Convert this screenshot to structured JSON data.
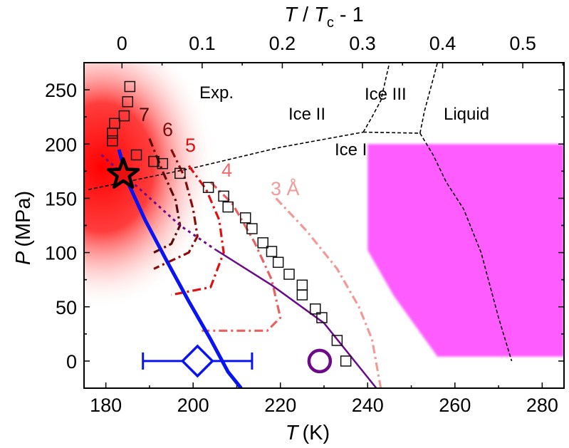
{
  "chart_data": {
    "type": "scatter",
    "xlabel": "T (K)",
    "xlabel_italic": "T",
    "xlabel_unit": "(K)",
    "ylabel_italic": "P",
    "ylabel_unit": "(MPa)",
    "top_xlabel": {
      "T": "T",
      "slash": " / ",
      "Tc": "T",
      "sub": "c",
      "rest": " - 1"
    },
    "xlim": [
      175,
      285
    ],
    "ylim": [
      -25,
      275
    ],
    "x_ticks": [
      180,
      200,
      220,
      240,
      260,
      280
    ],
    "x_tick_labels": [
      "180",
      "200",
      "220",
      "240",
      "260",
      "280"
    ],
    "y_ticks": [
      0,
      50,
      100,
      150,
      200,
      250
    ],
    "y_tick_labels": [
      "0",
      "50",
      "100",
      "150",
      "200",
      "250"
    ],
    "top_ticks": [
      0,
      0.1,
      0.2,
      0.3,
      0.4,
      0.5
    ],
    "top_tick_labels": [
      "0",
      "0.1",
      "0.2",
      "0.3",
      "0.4",
      "0.5"
    ],
    "Tc": 183.7,
    "annotations": {
      "exp": "Exp.",
      "ice_ii": "Ice II",
      "ice_iii": "Ice III",
      "ice_i": "Ice I",
      "liquid": "Liquid"
    },
    "critical_point": {
      "T": 184,
      "P": 172,
      "color": "#e8100f"
    },
    "red_glow": {
      "T": 184,
      "P": 172,
      "color": "#ff0000"
    },
    "exp_squares": [
      {
        "T": 185.5,
        "P": 253
      },
      {
        "T": 185,
        "P": 239
      },
      {
        "T": 184.2,
        "P": 226
      },
      {
        "T": 182,
        "P": 219
      },
      {
        "T": 181.5,
        "P": 210
      },
      {
        "T": 181.5,
        "P": 203
      },
      {
        "T": 187,
        "P": 190
      },
      {
        "T": 191,
        "P": 184
      },
      {
        "T": 193,
        "P": 182
      },
      {
        "T": 197,
        "P": 173
      },
      {
        "T": 203.5,
        "P": 160
      },
      {
        "T": 207,
        "P": 152
      },
      {
        "T": 208,
        "P": 142
      },
      {
        "T": 212,
        "P": 132
      },
      {
        "T": 213.5,
        "P": 122
      },
      {
        "T": 216,
        "P": 109
      },
      {
        "T": 218,
        "P": 101
      },
      {
        "T": 219.5,
        "P": 91
      },
      {
        "T": 222,
        "P": 80
      },
      {
        "T": 225,
        "P": 70
      },
      {
        "T": 225,
        "P": 61
      },
      {
        "T": 228,
        "P": 48
      },
      {
        "T": 229.5,
        "P": 40
      },
      {
        "T": 233,
        "P": 19
      },
      {
        "T": 235,
        "P": 0
      }
    ],
    "blue_line": {
      "color": "#0a14f0",
      "points": [
        [
          183,
          195
        ],
        [
          185,
          165
        ],
        [
          189,
          130
        ],
        [
          194,
          92
        ],
        [
          199,
          55
        ],
        [
          204,
          20
        ],
        [
          208,
          -10
        ],
        [
          211,
          -25
        ]
      ]
    },
    "purple_line": {
      "color": "#6c0a8a",
      "dotted": [
        [
          179,
          190
        ],
        [
          186,
          165
        ],
        [
          197,
          125
        ],
        [
          205,
          103
        ]
      ],
      "solid": [
        [
          205,
          103
        ],
        [
          218,
          70
        ],
        [
          230,
          35
        ],
        [
          242,
          -25
        ]
      ]
    },
    "blue_diamond": {
      "T": 201,
      "P": 0,
      "xerr_low": 188.5,
      "xerr_high": 213.5,
      "color": "#0a14f0"
    },
    "purple_circle": {
      "T": 229,
      "P": 0,
      "color": "#6c0a8a"
    },
    "contours": [
      {
        "label": "7",
        "color": "#5a0a0a",
        "points": [
          [
            190,
            205
          ],
          [
            193,
            175
          ],
          [
            196,
            148
          ],
          [
            197,
            125
          ],
          [
            195,
            108
          ],
          [
            191,
            100
          ]
        ]
      },
      {
        "label": "6",
        "color": "#8a0c0c",
        "points": [
          [
            195,
            195
          ],
          [
            198,
            170
          ],
          [
            200,
            140
          ],
          [
            201,
            115
          ],
          [
            199,
            100
          ],
          [
            191,
            85
          ]
        ]
      },
      {
        "label": "5",
        "color": "#e01010",
        "points": [
          [
            199,
            180
          ],
          [
            203,
            158
          ],
          [
            206,
            130
          ],
          [
            207,
            100
          ],
          [
            204,
            68
          ],
          [
            195,
            61
          ]
        ]
      },
      {
        "label": "4",
        "color": "#e86060",
        "points": [
          [
            204,
            165
          ],
          [
            209,
            145
          ],
          [
            214,
            110
          ],
          [
            218,
            75
          ],
          [
            220,
            40
          ],
          [
            217,
            28
          ],
          [
            202,
            28
          ]
        ]
      },
      {
        "label": "3 Å",
        "color": "#f09a9a",
        "points": [
          [
            219,
            150
          ],
          [
            226,
            120
          ],
          [
            233,
            85
          ],
          [
            238,
            50
          ],
          [
            241,
            20
          ],
          [
            243,
            -25
          ]
        ]
      }
    ],
    "phase_boundaries": {
      "color": "#000000",
      "ice1_ice2": [
        [
          176,
          158
        ],
        [
          200,
          178
        ],
        [
          220,
          197
        ],
        [
          239,
          211
        ]
      ],
      "ice2_ice3": [
        [
          239,
          211
        ],
        [
          241,
          225
        ],
        [
          243,
          240
        ],
        [
          245,
          275
        ]
      ],
      "ice3_ice1": [
        [
          239,
          211
        ],
        [
          252,
          210
        ]
      ],
      "ice3_liquid": [
        [
          252,
          210
        ],
        [
          253,
          230
        ],
        [
          256,
          275
        ]
      ],
      "ice1_liquid": [
        [
          252,
          210
        ],
        [
          255,
          190
        ],
        [
          258,
          165
        ],
        [
          262,
          140
        ],
        [
          266,
          100
        ],
        [
          268,
          70
        ],
        [
          270,
          40
        ],
        [
          273,
          0
        ]
      ]
    },
    "magenta_region": {
      "color": "#ff5cff",
      "points": [
        [
          240,
          200
        ],
        [
          285,
          200
        ],
        [
          285,
          4
        ],
        [
          256,
          4
        ],
        [
          246,
          60
        ],
        [
          240,
          102
        ]
      ]
    }
  }
}
